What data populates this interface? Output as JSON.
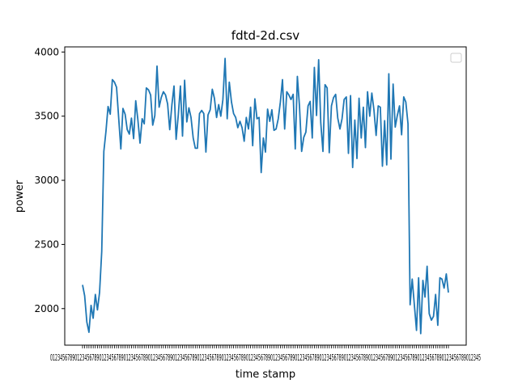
{
  "chart_data": {
    "type": "line",
    "title": "fdtd-2d.csv",
    "xlabel": "time stamp",
    "ylabel": "power",
    "ylim": [
      1715,
      4040
    ],
    "y_ticks": [
      2000,
      2500,
      3000,
      3500,
      4000
    ],
    "x_tick_labels": "dense, overlapping and illegible",
    "legend": {
      "placement": "top-right",
      "entries": []
    },
    "grid": false,
    "series": [
      {
        "color": "#1f77b4",
        "values": [
          2185,
          2100,
          1895,
          1815,
          2025,
          1925,
          2110,
          1990,
          2125,
          2445,
          3225,
          3380,
          3575,
          3515,
          3785,
          3765,
          3725,
          3480,
          3245,
          3560,
          3515,
          3395,
          3360,
          3485,
          3325,
          3620,
          3475,
          3290,
          3480,
          3440,
          3720,
          3705,
          3665,
          3430,
          3505,
          3890,
          3570,
          3645,
          3690,
          3665,
          3595,
          3395,
          3590,
          3735,
          3320,
          3510,
          3735,
          3345,
          3780,
          3455,
          3565,
          3490,
          3330,
          3250,
          3250,
          3520,
          3545,
          3520,
          3220,
          3510,
          3550,
          3710,
          3640,
          3490,
          3590,
          3500,
          3630,
          3950,
          3480,
          3765,
          3610,
          3520,
          3490,
          3410,
          3460,
          3410,
          3305,
          3490,
          3400,
          3570,
          3270,
          3635,
          3480,
          3490,
          3060,
          3330,
          3220,
          3555,
          3460,
          3550,
          3390,
          3400,
          3480,
          3610,
          3785,
          3400,
          3690,
          3665,
          3630,
          3670,
          3245,
          3810,
          3580,
          3225,
          3335,
          3375,
          3580,
          3615,
          3330,
          3880,
          3505,
          3940,
          3450,
          3225,
          3745,
          3720,
          3215,
          3580,
          3645,
          3670,
          3485,
          3400,
          3480,
          3630,
          3650,
          3210,
          3660,
          3100,
          3470,
          3170,
          3640,
          3330,
          3570,
          3255,
          3690,
          3500,
          3680,
          3550,
          3350,
          3580,
          3570,
          3110,
          3465,
          3120,
          3830,
          3165,
          3750,
          3415,
          3505,
          3580,
          3355,
          3650,
          3610,
          3440,
          2030,
          2230,
          2025,
          1830,
          2240,
          1805,
          2220,
          2090,
          2330,
          1960,
          1910,
          1940,
          2110,
          1870,
          2240,
          2230,
          2160,
          2270,
          2125
        ]
      }
    ]
  }
}
